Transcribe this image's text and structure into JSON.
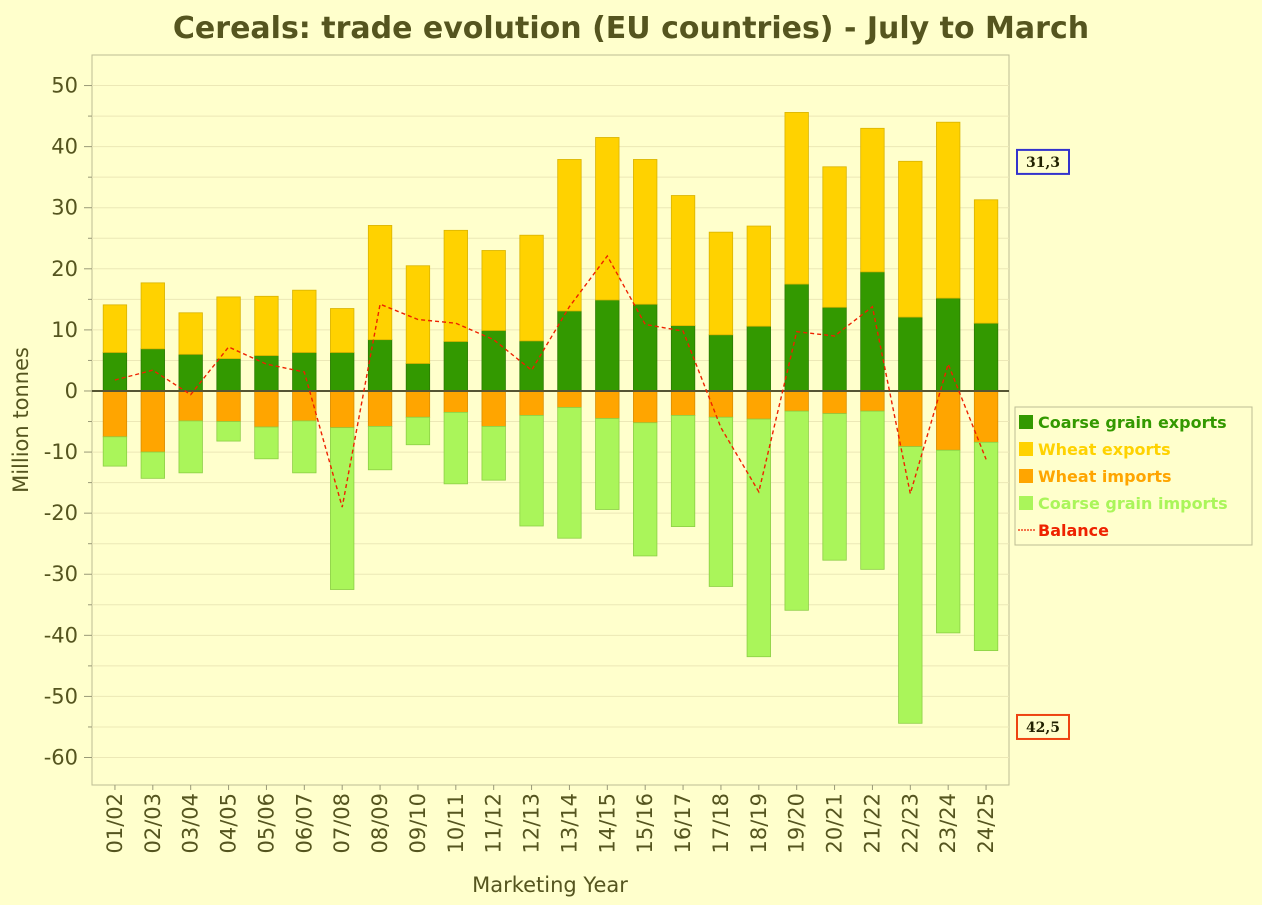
{
  "chart_data": {
    "type": "bar",
    "title": "Cereals: trade evolution (EU countries) - July to March",
    "xlabel": "Marketing Year",
    "ylabel": "Million tonnes",
    "ylim": [
      -64.5,
      55
    ],
    "yticks": [
      50,
      40,
      30,
      20,
      10,
      0,
      -10,
      -20,
      -30,
      -40,
      -50,
      -60
    ],
    "grid": true,
    "legend_position": "right",
    "categories": [
      "01/02",
      "02/03",
      "03/04",
      "04/05",
      "05/06",
      "06/07",
      "07/08",
      "08/09",
      "09/10",
      "10/11",
      "11/12",
      "12/13",
      "13/14",
      "14/15",
      "15/16",
      "16/17",
      "17/18",
      "18/19",
      "19/20",
      "20/21",
      "21/22",
      "22/23",
      "23/24",
      "24/25"
    ],
    "series": [
      {
        "name": "Coarse grain exports",
        "kind": "bar",
        "color": "#339900",
        "values": [
          6.3,
          6.9,
          6.0,
          5.3,
          5.8,
          6.3,
          6.3,
          8.4,
          4.5,
          8.1,
          9.9,
          8.2,
          13.1,
          14.9,
          14.2,
          10.7,
          9.2,
          10.6,
          17.5,
          13.7,
          19.5,
          12.1,
          15.2,
          11.1
        ]
      },
      {
        "name": "Wheat exports",
        "kind": "bar",
        "color": "#ffd200",
        "values": [
          7.8,
          10.8,
          6.8,
          10.1,
          9.7,
          10.2,
          7.2,
          18.7,
          16.0,
          18.2,
          13.1,
          17.3,
          24.8,
          26.6,
          23.7,
          21.3,
          16.8,
          16.4,
          28.1,
          23.0,
          23.5,
          25.5,
          28.8,
          20.2
        ]
      },
      {
        "name": "Wheat imports",
        "kind": "bar",
        "color": "#ffa500",
        "values": [
          -7.5,
          -10.0,
          -4.9,
          -5.0,
          -5.9,
          -4.9,
          -6.0,
          -5.8,
          -4.3,
          -3.5,
          -5.8,
          -4.0,
          -2.7,
          -4.5,
          -5.2,
          -4.0,
          -4.3,
          -4.6,
          -3.3,
          -3.7,
          -3.3,
          -9.1,
          -9.7,
          -8.4
        ]
      },
      {
        "name": "Coarse grain imports",
        "kind": "bar",
        "color": "#aaf55a",
        "values": [
          -4.8,
          -4.3,
          -8.5,
          -3.2,
          -5.2,
          -8.5,
          -26.5,
          -7.1,
          -4.5,
          -11.7,
          -8.8,
          -18.1,
          -21.4,
          -14.9,
          -21.8,
          -18.2,
          -27.7,
          -38.9,
          -32.6,
          -24.0,
          -25.9,
          -45.3,
          -29.9,
          -34.1
        ]
      },
      {
        "name": "Balance",
        "kind": "line",
        "color": "#ee2200",
        "values": [
          1.8,
          3.4,
          -0.6,
          7.2,
          4.4,
          3.1,
          -19.0,
          14.2,
          11.7,
          11.1,
          8.4,
          3.4,
          13.8,
          22.1,
          10.9,
          9.8,
          -6.0,
          -16.5,
          9.7,
          9.0,
          13.8,
          -16.8,
          4.4,
          -11.2
        ]
      }
    ],
    "annotations": [
      {
        "text": "31,3",
        "meaning": "latest total exports",
        "anchor_value": 37.5,
        "border_color": "#3333cc"
      },
      {
        "text": "42,5",
        "meaning": "latest total imports",
        "anchor_value": -55.0,
        "border_color": "#ee4411"
      }
    ]
  }
}
